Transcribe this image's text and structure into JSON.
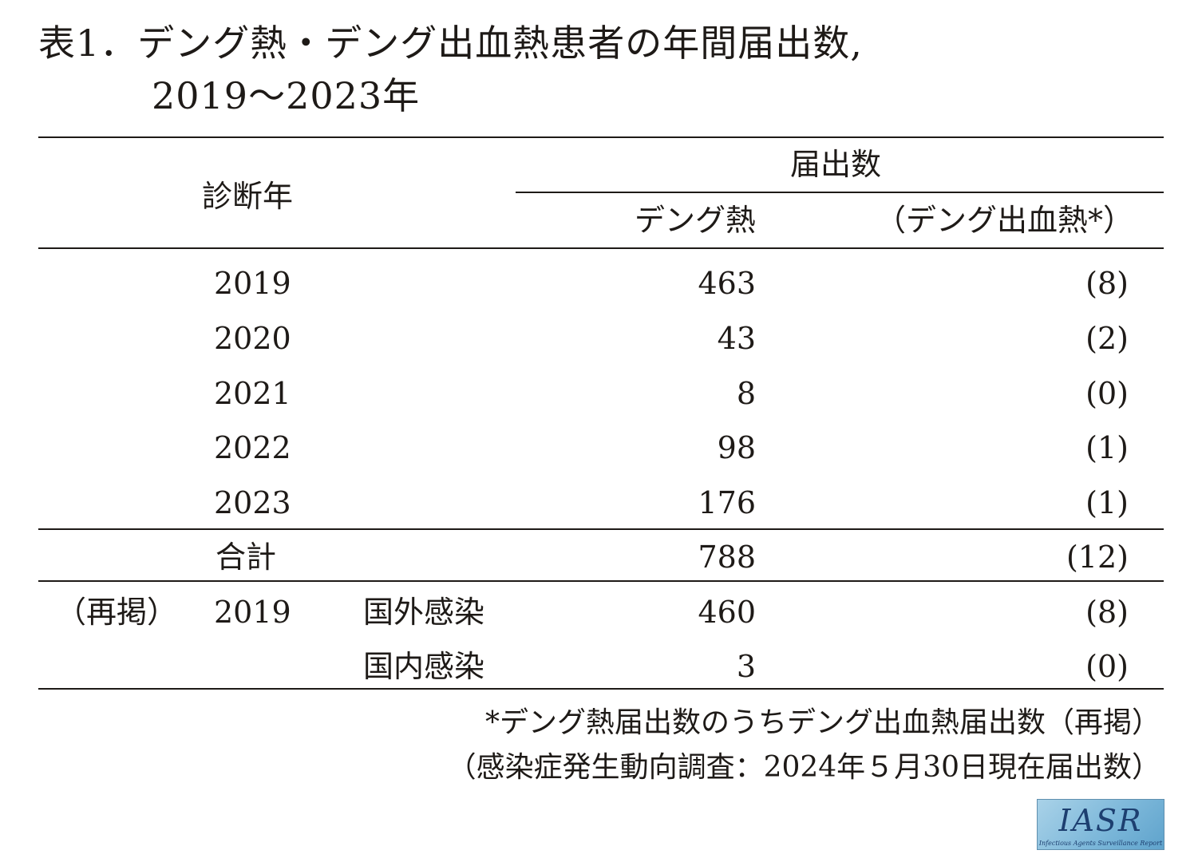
{
  "title": {
    "line1": "表1．デング熱・デング出血熱患者の年間届出数,",
    "line2": "2019〜2023年"
  },
  "header": {
    "diagnosis_year": "診断年",
    "report_count": "届出数",
    "dengue": "デング熱",
    "dhf": "（デング出血熱*）"
  },
  "rows": [
    {
      "year": "2019",
      "dengue": "463",
      "dhf": "(8)"
    },
    {
      "year": "2020",
      "dengue": "43",
      "dhf": "(2)"
    },
    {
      "year": "2021",
      "dengue": "8",
      "dhf": "(0)"
    },
    {
      "year": "2022",
      "dengue": "98",
      "dhf": "(1)"
    },
    {
      "year": "2023",
      "dengue": "176",
      "dhf": "(1)"
    }
  ],
  "total": {
    "label": "合計",
    "dengue": "788",
    "dhf": "(12)"
  },
  "repost": {
    "label": "（再掲）",
    "year": "2019",
    "rows": [
      {
        "category": "国外感染",
        "dengue": "460",
        "dhf": "(8)"
      },
      {
        "category": "国内感染",
        "dengue": "3",
        "dhf": "(0)"
      }
    ]
  },
  "notes": {
    "line1": "*デング熱届出数のうちデング出血熱届出数（再掲）",
    "line2": "（感染症発生動向調査：2024年５月30日現在届出数）"
  },
  "logo": {
    "main": "IASR",
    "sub": "Infectious Agents Surveillance Report"
  }
}
